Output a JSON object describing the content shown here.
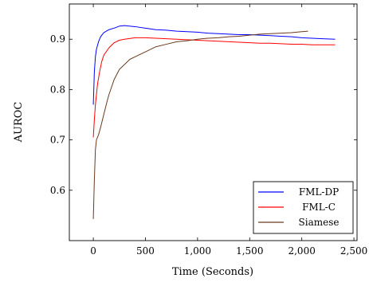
{
  "chart_data": {
    "type": "line",
    "title": "",
    "xlabel": "Time (Seconds)",
    "ylabel": "AUROC",
    "xlim": [
      -230,
      2530
    ],
    "ylim": [
      0.5,
      0.97
    ],
    "xticks": [
      0,
      500,
      1000,
      1500,
      2000,
      2500
    ],
    "xtick_labels": [
      "0",
      "500",
      "1,000",
      "1,500",
      "2,000",
      "2,500"
    ],
    "yticks": [
      0.6,
      0.7,
      0.8,
      0.9
    ],
    "ytick_labels": [
      "0.6",
      "0.7",
      "0.8",
      "0.9"
    ],
    "grid": false,
    "legend_position": "bottom-right",
    "series": [
      {
        "name": "FML-DP",
        "color": "#0000ff",
        "x": [
          0,
          10,
          20,
          30,
          50,
          70,
          100,
          150,
          200,
          250,
          300,
          400,
          500,
          600,
          700,
          800,
          900,
          1000,
          1100,
          1200,
          1300,
          1400,
          1500,
          1600,
          1700,
          1800,
          1900,
          2000,
          2100,
          2200,
          2320
        ],
        "y": [
          0.77,
          0.835,
          0.865,
          0.88,
          0.895,
          0.905,
          0.913,
          0.919,
          0.922,
          0.926,
          0.927,
          0.925,
          0.922,
          0.919,
          0.918,
          0.916,
          0.915,
          0.914,
          0.912,
          0.911,
          0.91,
          0.909,
          0.909,
          0.908,
          0.907,
          0.906,
          0.905,
          0.903,
          0.902,
          0.901,
          0.9
        ]
      },
      {
        "name": "FML-C",
        "color": "#ff0000",
        "x": [
          0,
          10,
          20,
          40,
          60,
          80,
          100,
          150,
          200,
          250,
          300,
          400,
          500,
          600,
          700,
          800,
          900,
          1000,
          1100,
          1200,
          1300,
          1400,
          1500,
          1600,
          1700,
          1800,
          1900,
          2000,
          2100,
          2200,
          2320
        ],
        "y": [
          0.705,
          0.74,
          0.77,
          0.81,
          0.835,
          0.855,
          0.868,
          0.883,
          0.893,
          0.898,
          0.9,
          0.903,
          0.903,
          0.902,
          0.901,
          0.9,
          0.899,
          0.898,
          0.897,
          0.896,
          0.895,
          0.894,
          0.893,
          0.892,
          0.892,
          0.891,
          0.89,
          0.89,
          0.889,
          0.889,
          0.889
        ]
      },
      {
        "name": "Siamese",
        "color": "#6b3a1f",
        "x": [
          0,
          10,
          20,
          30,
          50,
          70,
          100,
          130,
          150,
          200,
          250,
          300,
          350,
          400,
          450,
          500,
          600,
          700,
          800,
          900,
          1000,
          1100,
          1200,
          1300,
          1400,
          1500,
          1600,
          1700,
          1800,
          1900,
          2000,
          2060
        ],
        "y": [
          0.543,
          0.62,
          0.68,
          0.7,
          0.71,
          0.725,
          0.75,
          0.775,
          0.79,
          0.82,
          0.84,
          0.85,
          0.86,
          0.865,
          0.87,
          0.875,
          0.885,
          0.89,
          0.895,
          0.897,
          0.9,
          0.902,
          0.903,
          0.905,
          0.906,
          0.908,
          0.91,
          0.911,
          0.912,
          0.913,
          0.915,
          0.916
        ]
      }
    ]
  }
}
